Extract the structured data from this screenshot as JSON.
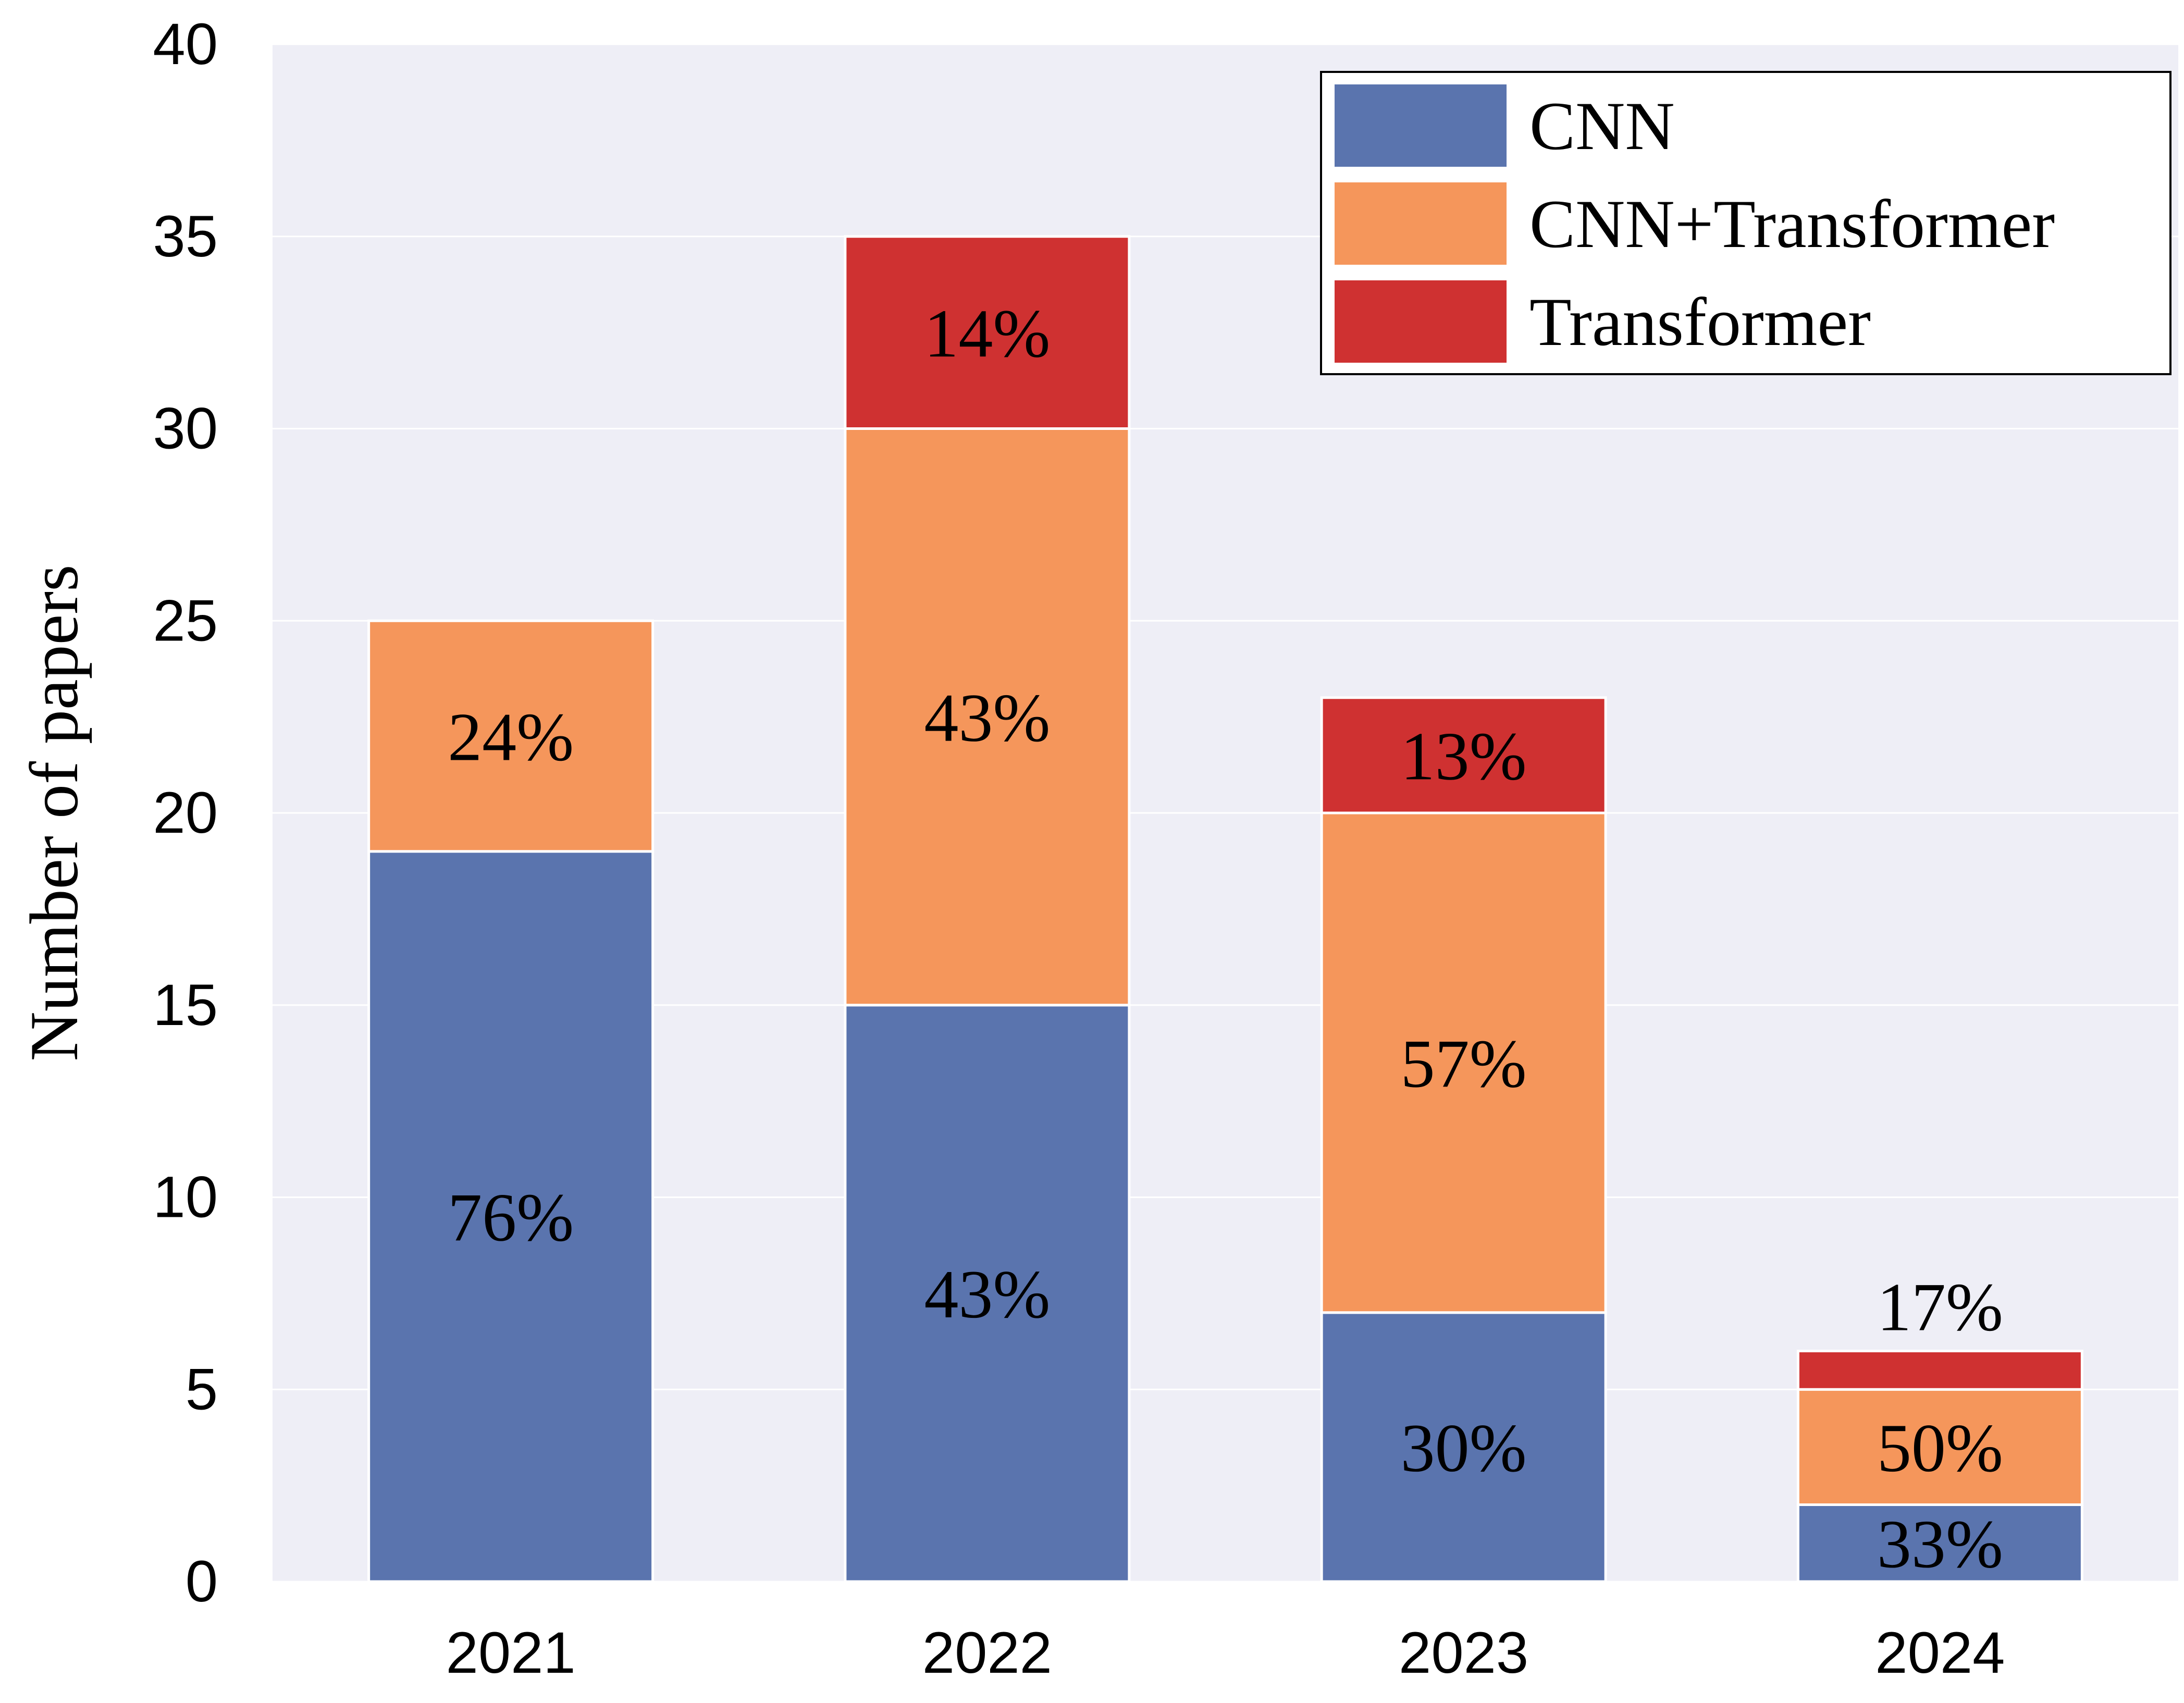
{
  "chart_data": {
    "type": "bar",
    "stacked": true,
    "categories": [
      "2021",
      "2022",
      "2023",
      "2024"
    ],
    "series": [
      {
        "name": "CNN",
        "color": "#5a74ae",
        "values": [
          19,
          15,
          7,
          2
        ],
        "labels": [
          "76%",
          "43%",
          "30%",
          "33%"
        ]
      },
      {
        "name": "CNN+Transformer",
        "color": "#f5965b",
        "values": [
          6,
          15,
          13,
          3
        ],
        "labels": [
          "24%",
          "43%",
          "57%",
          "50%"
        ]
      },
      {
        "name": "Transformer",
        "color": "#cf3131",
        "values": [
          0,
          5,
          3,
          1
        ],
        "labels": [
          "",
          "14%",
          "13%",
          "17%"
        ]
      }
    ],
    "title": "",
    "xlabel": "",
    "ylabel": "Number of papers",
    "ylim": [
      0,
      40
    ],
    "yticks": [
      0,
      5,
      10,
      15,
      20,
      25,
      30,
      35,
      40
    ],
    "grid": true,
    "legend_position": "top-right",
    "background_color": "#eeeef6"
  }
}
